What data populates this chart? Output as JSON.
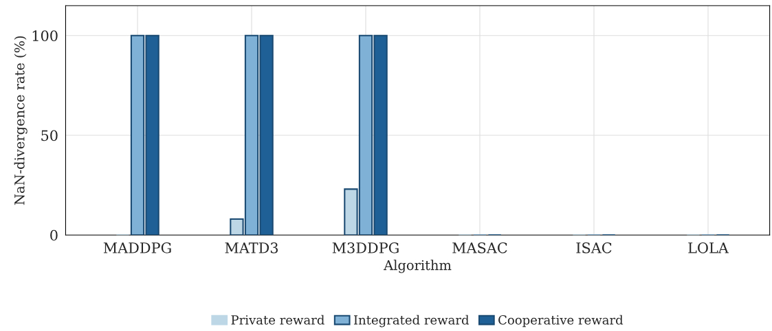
{
  "chart_data": {
    "type": "bar",
    "xlabel": "Algorithm",
    "ylabel": "NaN-divergence rate (%)",
    "categories": [
      "MADDPG",
      "MATD3",
      "M3DDPG",
      "MASAC",
      "ISAC",
      "LOLA"
    ],
    "series": [
      {
        "name": "Private reward",
        "color": "#bdd7e7",
        "values": [
          0,
          8,
          23,
          0,
          0,
          0
        ]
      },
      {
        "name": "Integrated reward",
        "color": "#7fb0d6",
        "values": [
          100,
          100,
          100,
          0,
          0,
          0
        ]
      },
      {
        "name": "Cooperative reward",
        "color": "#1f6197",
        "values": [
          100,
          100,
          100,
          0,
          0,
          0
        ]
      }
    ],
    "ylim": [
      0,
      115
    ],
    "yticks": [
      0,
      50,
      100
    ],
    "grid": true,
    "legend": "bottom"
  }
}
